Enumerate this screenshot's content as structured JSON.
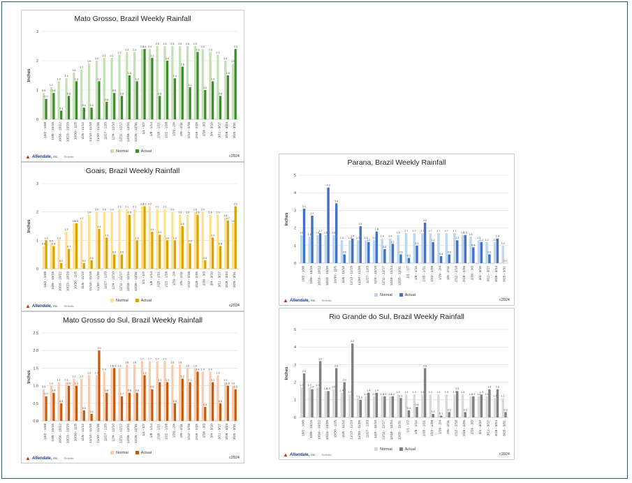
{
  "categories": [
    "10/2 - 10/8",
    "10/9 - 10/15",
    "10/16 - 10/22",
    "10/23 - 10/29",
    "10/30 - 11/5",
    "11/6 - 11/12",
    "11/13 - 11/19",
    "11/20 - 11/26",
    "11/27 - 12/3",
    "12/4 - 12/10",
    "12/11 - 12/17",
    "12/18 - 12/24",
    "12/25 - 12/31",
    "1/1 - 1/7",
    "1/8 - 1/14",
    "1/15 - 1/21",
    "1/22 - 1/28",
    "1/29 - 2/4",
    "2/5 - 2/11",
    "2/12 - 2/18",
    "2/19 - 2/25",
    "2/26 - 3/3",
    "3/4 - 3/10",
    "3/11 - 3/17",
    "3/18 - 3/24",
    "3/25 - 3/31"
  ],
  "legend": {
    "normal": "Normal",
    "actual": "Actual"
  },
  "footer": {
    "brand": "Allendale,",
    "brand_suffix": "Inc.",
    "tag": "Refinitiv",
    "year": "c2024"
  },
  "chart_data": [
    {
      "type": "bar",
      "title": "Mato Grosso, Brazil Weekly Rainfall",
      "ylabel": "Inches",
      "ylim": [
        0,
        3
      ],
      "yticks": [
        0,
        1,
        2,
        3
      ],
      "colors": {
        "normal": "#c5e0b4",
        "actual": "#3e8a2e"
      },
      "series": [
        {
          "name": "Normal",
          "values": [
            0.9,
            1.1,
            1.3,
            1.4,
            1.6,
            1.7,
            1.9,
            2.0,
            2.1,
            2.1,
            2.2,
            2.3,
            2.3,
            2.4,
            2.4,
            2.5,
            2.5,
            2.5,
            2.5,
            2.5,
            2.5,
            2.4,
            2.3,
            2.2,
            2.0,
            1.9
          ]
        },
        {
          "name": "Actual",
          "values": [
            0.7,
            0.9,
            0.3,
            0.8,
            1.3,
            0.4,
            0.4,
            1.3,
            0.6,
            0.9,
            0.8,
            1.5,
            1.3,
            2.4,
            2.1,
            0.8,
            2.0,
            1.4,
            1.8,
            1.1,
            2.3,
            1.0,
            1.3,
            0.8,
            1.5,
            2.4
          ]
        }
      ]
    },
    {
      "type": "bar",
      "title": "Goais, Brazil Weekly Rainfall",
      "ylabel": "Inches",
      "ylim": [
        0,
        3
      ],
      "yticks": [
        0,
        1,
        2,
        3
      ],
      "colors": {
        "normal": "#ffe08a",
        "actual": "#d9a400"
      },
      "series": [
        {
          "name": "Normal",
          "values": [
            0.8,
            0.9,
            1.0,
            1.3,
            1.6,
            1.7,
            1.9,
            2.0,
            2.0,
            2.0,
            2.1,
            2.1,
            2.1,
            2.2,
            2.2,
            2.1,
            2.1,
            2.0,
            1.9,
            1.9,
            2.0,
            2.0,
            1.9,
            1.9,
            1.8,
            1.6
          ]
        },
        {
          "name": "Actual",
          "values": [
            1.0,
            0.8,
            0.2,
            0.7,
            1.6,
            0.2,
            0.3,
            1.4,
            1.1,
            0.5,
            0.5,
            1.9,
            1.0,
            2.2,
            1.3,
            1.2,
            1.0,
            1.0,
            1.5,
            0.9,
            1.9,
            0.3,
            1.1,
            0.8,
            1.7,
            2.2
          ]
        }
      ]
    },
    {
      "type": "bar",
      "title": "Mato Grosso do Sul, Brazil Weekly Rainfall",
      "ylabel": "Inches",
      "ylim": [
        0,
        2.5
      ],
      "yticks": [
        0,
        0.5,
        1.0,
        1.5,
        2.0,
        2.5
      ],
      "colors": {
        "normal": "#f8cbad",
        "actual": "#c55a11"
      },
      "series": [
        {
          "name": "Normal",
          "values": [
            0.9,
            1.0,
            1.1,
            1.1,
            1.2,
            1.2,
            1.3,
            1.3,
            1.4,
            1.5,
            1.5,
            1.6,
            1.6,
            1.7,
            1.7,
            1.7,
            1.7,
            1.6,
            1.6,
            1.5,
            1.5,
            1.4,
            1.4,
            1.3,
            1.1,
            1.0
          ]
        },
        {
          "name": "Actual",
          "values": [
            0.7,
            0.8,
            0.5,
            1.0,
            1.0,
            0.3,
            0.2,
            2.0,
            0.8,
            1.5,
            0.7,
            0.8,
            0.8,
            1.3,
            0.9,
            1.1,
            1.1,
            0.5,
            1.2,
            1.1,
            1.4,
            0.4,
            1.1,
            0.5,
            1.0,
            0.9
          ]
        }
      ]
    },
    {
      "type": "bar",
      "title": "Parana, Brazil Weekly Rainfall",
      "ylabel": "Inches",
      "ylim": [
        0,
        5
      ],
      "yticks": [
        0,
        1,
        2,
        3,
        4,
        5
      ],
      "colors": {
        "normal": "#bdd7ee",
        "actual": "#4472c4"
      },
      "series": [
        {
          "name": "Normal",
          "values": [
            1.6,
            1.5,
            1.6,
            1.6,
            1.6,
            1.3,
            1.3,
            1.3,
            1.3,
            1.3,
            1.4,
            1.4,
            1.6,
            1.7,
            1.7,
            1.7,
            1.7,
            1.7,
            1.7,
            1.7,
            1.6,
            1.5,
            1.3,
            1.2,
            1.2,
            1.0
          ]
        },
        {
          "name": "Actual",
          "values": [
            3.1,
            2.7,
            1.7,
            4.3,
            3.4,
            0.5,
            1.4,
            2.1,
            1.2,
            1.8,
            0.8,
            1.1,
            0.5,
            0.3,
            1.0,
            2.3,
            1.2,
            0.4,
            0.5,
            1.3,
            1.6,
            0.9,
            1.2,
            0.5,
            1.4,
            0.0
          ]
        }
      ]
    },
    {
      "type": "bar",
      "title": "Rio Grande do Sul, Brazil Weekly Rainfall",
      "ylabel": "Inches",
      "ylim": [
        0,
        5
      ],
      "yticks": [
        0,
        1,
        2,
        3,
        4,
        5
      ],
      "colors": {
        "normal": "#d9d9d9",
        "actual": "#7f7f7f"
      },
      "series": [
        {
          "name": "Normal",
          "values": [
            1.7,
            1.7,
            1.7,
            1.5,
            1.6,
            1.4,
            1.3,
            1.1,
            1.2,
            1.2,
            1.2,
            1.2,
            1.3,
            1.3,
            1.3,
            1.3,
            1.3,
            1.3,
            1.3,
            1.3,
            1.3,
            1.2,
            1.2,
            1.2,
            1.1,
            1.1
          ]
        },
        {
          "name": "Actual",
          "values": [
            2.5,
            1.6,
            3.2,
            1.5,
            2.8,
            2.0,
            4.2,
            1.0,
            1.4,
            1.4,
            1.2,
            1.2,
            1.1,
            0.4,
            0.6,
            2.8,
            0.2,
            0.1,
            0.3,
            1.5,
            0.3,
            1.2,
            1.3,
            1.6,
            1.6,
            0.3
          ]
        }
      ]
    }
  ]
}
